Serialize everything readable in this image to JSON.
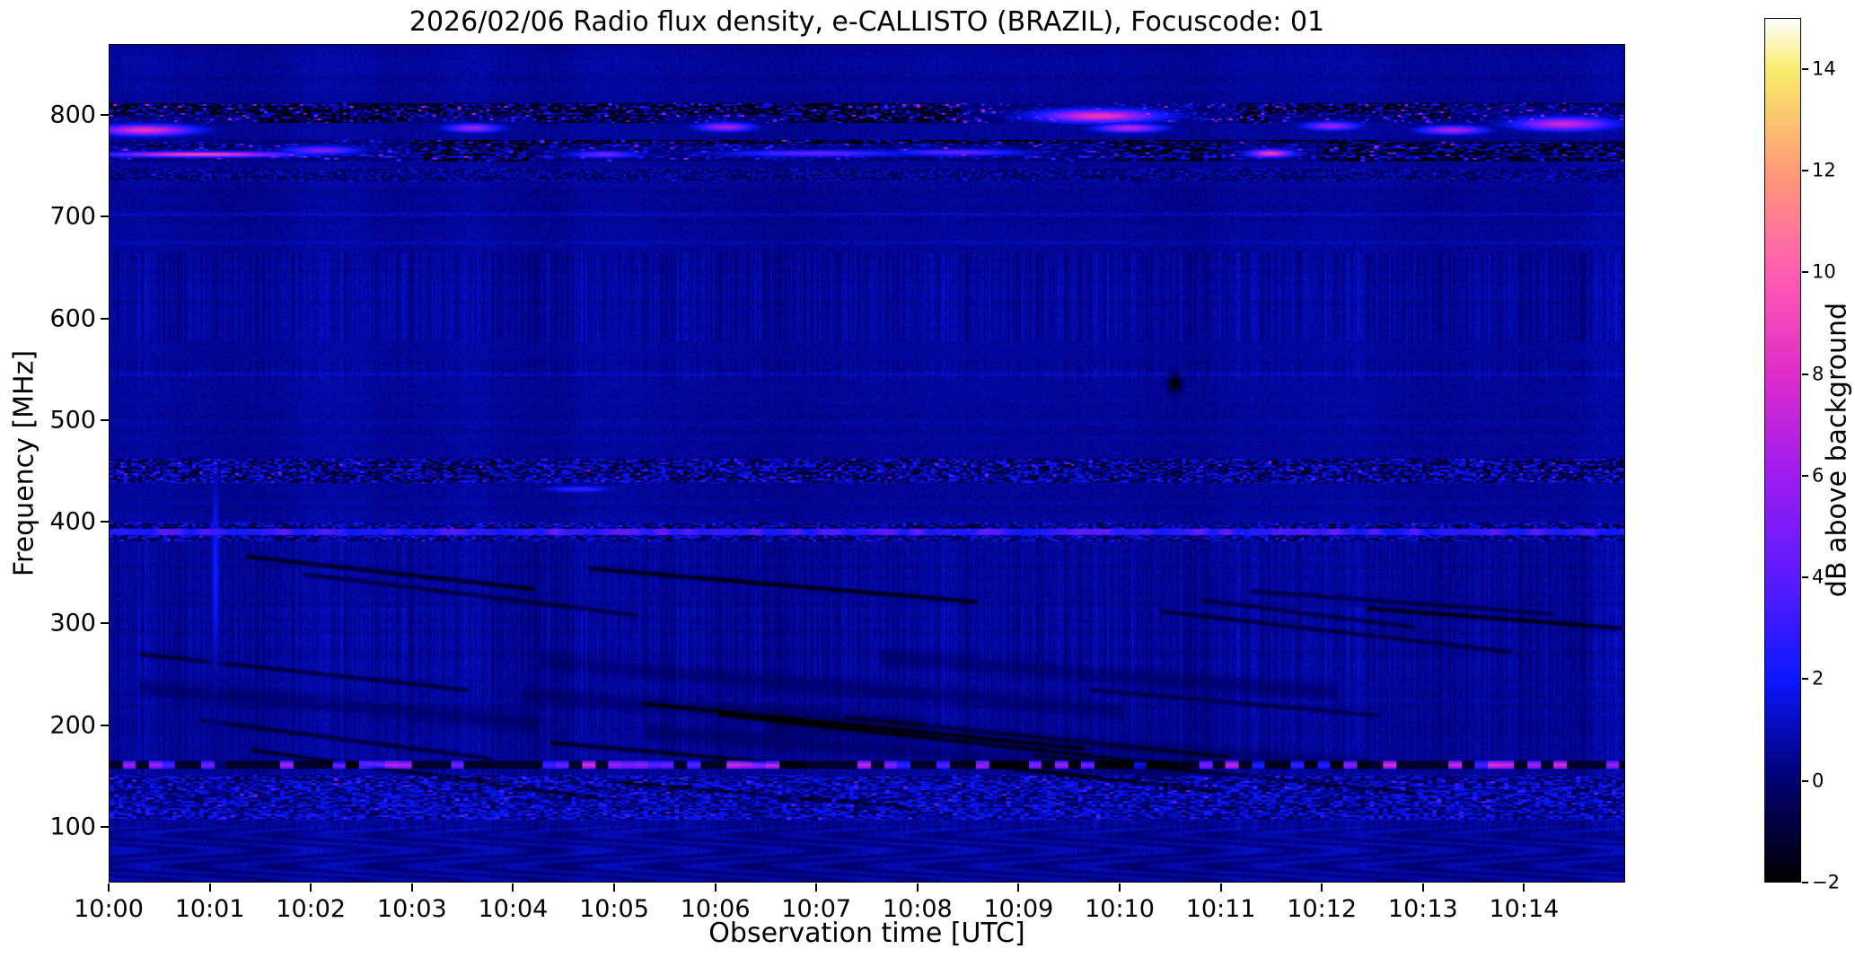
{
  "chart_data": {
    "type": "heatmap",
    "title": "2026/02/06  Radio flux density, e-CALLISTO (BRAZIL), Focuscode: 01",
    "xlabel": "Observation time [UTC]",
    "ylabel": "Frequency [MHz]",
    "colorbar_label": "dB above background",
    "x_ticks": [
      "10:00",
      "10:01",
      "10:02",
      "10:03",
      "10:04",
      "10:05",
      "10:06",
      "10:07",
      "10:08",
      "10:09",
      "10:10",
      "10:11",
      "10:12",
      "10:13",
      "10:14"
    ],
    "x_tick_minutes": [
      0,
      1,
      2,
      3,
      4,
      5,
      6,
      7,
      8,
      9,
      10,
      11,
      12,
      13,
      14
    ],
    "y_ticks": [
      100,
      200,
      300,
      400,
      500,
      600,
      700,
      800
    ],
    "time_range_minutes": [
      0,
      15
    ],
    "freq_range_mhz": [
      45,
      870
    ],
    "value_range_db": [
      -2,
      15
    ],
    "colorbar_ticks": [
      -2,
      0,
      2,
      4,
      6,
      8,
      10,
      12,
      14
    ],
    "grid": false,
    "colormap": {
      "name": "gnuplot2-like",
      "stops": [
        [
          0,
          "#000000"
        ],
        [
          0.12,
          "#000074"
        ],
        [
          0.235,
          "#0a18ff"
        ],
        [
          0.35,
          "#5a1aff"
        ],
        [
          0.47,
          "#9c1cf0"
        ],
        [
          0.59,
          "#e02cc8"
        ],
        [
          0.71,
          "#ff5fb0"
        ],
        [
          0.82,
          "#ff9878"
        ],
        [
          0.94,
          "#f8ec6a"
        ],
        [
          1,
          "#ffffff"
        ]
      ]
    },
    "background_level_db": 0.55,
    "features": {
      "bands": [
        {
          "name": "stripe-texture-95-380",
          "fmin": 95,
          "fmax": 380,
          "type": "vstripes",
          "amp": 0.55
        },
        {
          "name": "stripe-extra-248-315",
          "fmin": 248,
          "fmax": 315,
          "type": "vstripes",
          "amp": 0.3
        },
        {
          "name": "stripe-540-560",
          "fmin": 540,
          "fmax": 560,
          "type": "vstripes",
          "amp": 0.45
        },
        {
          "name": "stripe-578-665",
          "fmin": 578,
          "fmax": 665,
          "type": "vstripes",
          "amp": 0.85
        },
        {
          "name": "moire-45-100",
          "fmin": 45,
          "fmax": 100,
          "type": "moire",
          "amp": 0.5
        },
        {
          "name": "rfi-793-813",
          "fmin": 793,
          "fmax": 813,
          "type": "mottled",
          "base": -0.9,
          "amp": 2.6,
          "rowvar": 1.8,
          "spike_prob": 0.07,
          "spike_max": 6,
          "cell": [
            4,
            2
          ],
          "seed": 1
        },
        {
          "name": "rfi-755-776",
          "fmin": 755,
          "fmax": 776,
          "type": "mottled",
          "base": -0.6,
          "amp": 2.3,
          "rowvar": 1.6,
          "spike_prob": 0.05,
          "spike_max": 4.5,
          "cell": [
            5,
            2
          ],
          "seed": 2
        },
        {
          "name": "band-735-748",
          "fmin": 735,
          "fmax": 748,
          "type": "mottled",
          "base": 0.3,
          "amp": 1.0,
          "rowvar": 0.5,
          "spike_prob": 0.01,
          "spike_max": 2,
          "cell": [
            3,
            2
          ],
          "seed": 3
        },
        {
          "name": "rfi-438-462",
          "fmin": 438,
          "fmax": 462,
          "type": "mottled",
          "base": 0.2,
          "amp": 1.9,
          "rowvar": 0.7,
          "spike_prob": 0.05,
          "spike_max": 3.5,
          "cell": [
            4,
            2
          ],
          "seed": 4
        },
        {
          "name": "band-381-399",
          "fmin": 381,
          "fmax": 399,
          "type": "mottled",
          "base": 0.4,
          "amp": 1.6,
          "rowvar": 0.6,
          "spike_prob": 0.04,
          "spike_max": 2.5,
          "cell": [
            4,
            2
          ],
          "seed": 5
        },
        {
          "name": "line-390",
          "fmin": 387,
          "fmax": 393,
          "type": "hline",
          "level": 3.1,
          "jitter": 1.2
        },
        {
          "name": "noisy-106-150",
          "fmin": 106,
          "fmax": 150,
          "type": "mottled",
          "base": 0.7,
          "amp": 1.5,
          "rowvar": 0.6,
          "spike_prob": 0.06,
          "spike_max": 2.5,
          "cell": [
            5,
            2
          ],
          "seed": 6
        },
        {
          "name": "dash-line-160",
          "fmin": 156,
          "fmax": 164,
          "type": "dashline",
          "bright_min": 3,
          "bright_max": 8.5,
          "dark": -1.2,
          "seg_minutes": 0.13,
          "bright_prob": 0.4
        }
      ],
      "faint_lines": [
        {
          "f": 703,
          "db": 0.6
        },
        {
          "f": 675,
          "db": 0.35
        },
        {
          "f": 545,
          "db": 0.45
        }
      ],
      "hotspots": [
        {
          "t": 0.35,
          "f": 786,
          "rt": 0.45,
          "rf": 5,
          "db": 8.5
        },
        {
          "t": 0.9,
          "f": 762,
          "rt": 0.85,
          "rf": 2.5,
          "db": 9.5
        },
        {
          "t": 2.1,
          "f": 766,
          "rt": 0.35,
          "rf": 4,
          "db": 5
        },
        {
          "t": 3.6,
          "f": 788,
          "rt": 0.25,
          "rf": 4,
          "db": 6
        },
        {
          "t": 4.9,
          "f": 762,
          "rt": 0.3,
          "rf": 3,
          "db": 5
        },
        {
          "t": 6.1,
          "f": 789,
          "rt": 0.25,
          "rf": 4,
          "db": 6.5
        },
        {
          "t": 7.0,
          "f": 763,
          "rt": 0.8,
          "rf": 3,
          "db": 4.5
        },
        {
          "t": 8.4,
          "f": 764,
          "rt": 0.6,
          "rf": 3,
          "db": 4.5
        },
        {
          "t": 9.8,
          "f": 800,
          "rt": 0.55,
          "rf": 6,
          "db": 8.5
        },
        {
          "t": 10.1,
          "f": 788,
          "rt": 0.3,
          "rf": 4,
          "db": 7
        },
        {
          "t": 11.5,
          "f": 763,
          "rt": 0.2,
          "rf": 3.5,
          "db": 9
        },
        {
          "t": 12.1,
          "f": 790,
          "rt": 0.25,
          "rf": 4,
          "db": 6
        },
        {
          "t": 13.3,
          "f": 786,
          "rt": 0.3,
          "rf": 4,
          "db": 6.5
        },
        {
          "t": 14.4,
          "f": 792,
          "rt": 0.45,
          "rf": 6,
          "db": 7.5
        },
        {
          "t": 1.05,
          "f": 350,
          "rt": 0.04,
          "rf": 95,
          "db": 2.2
        },
        {
          "t": 4.65,
          "f": 432,
          "rt": 0.3,
          "rf": 3,
          "db": 3.2
        }
      ],
      "dark_spots": [
        {
          "t": 10.55,
          "f": 536,
          "rt": 0.06,
          "rf": 9,
          "db": -2.6
        }
      ],
      "diagonal_streaks": {
        "count": 18,
        "wide_count": 6,
        "f_min": 125,
        "f_max": 370,
        "slope_min": -14,
        "slope_max": -7,
        "len_min": 2.0,
        "len_max": 4.5,
        "width": 2.0,
        "depth": 1.8
      }
    }
  }
}
